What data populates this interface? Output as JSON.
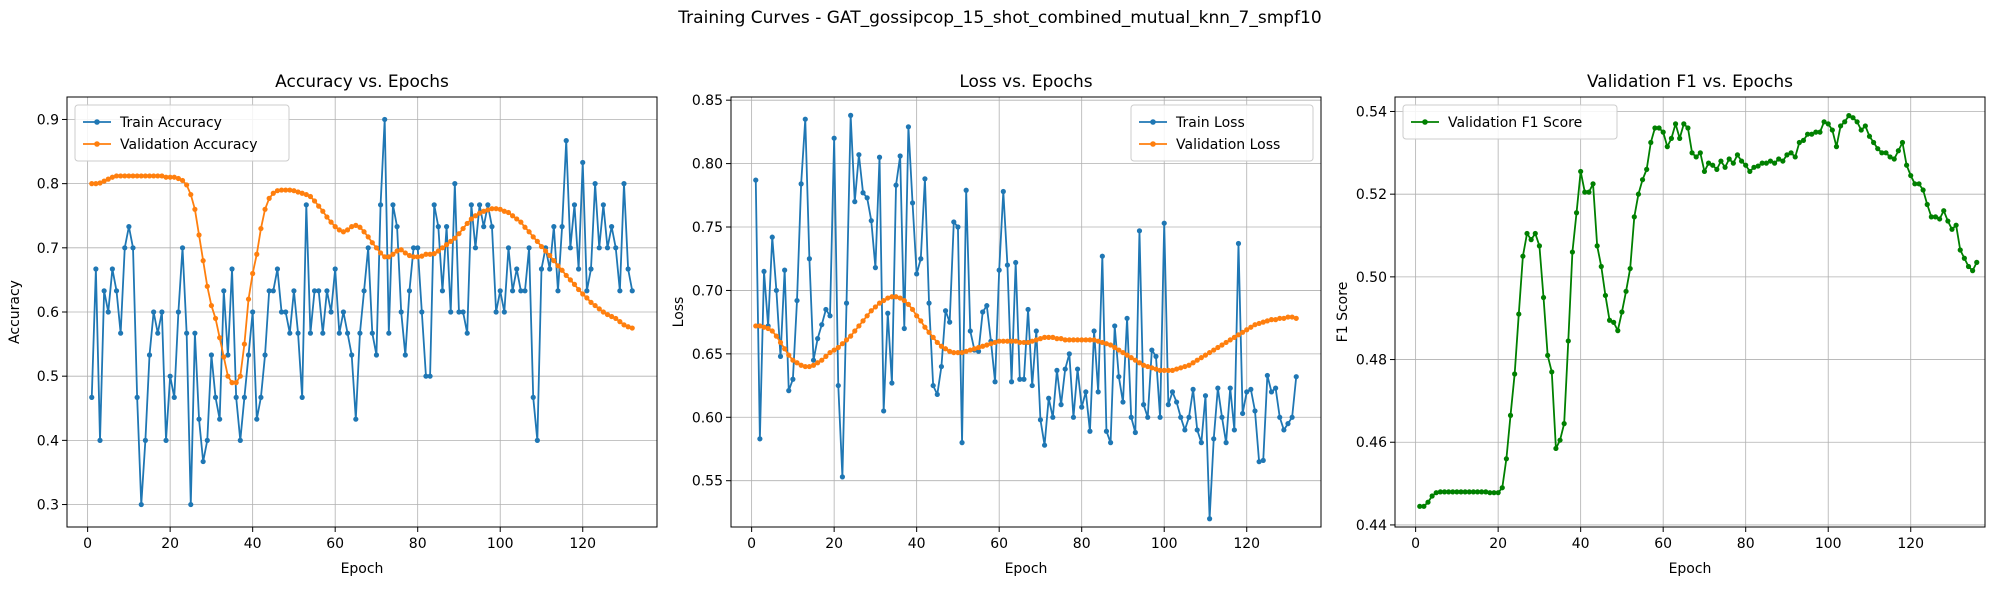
{
  "figure_title": "Training Curves - GAT_gossipcop_15_shot_combined_mutual_knn_7_smpf10",
  "chart_data": [
    {
      "type": "line",
      "title": "Accuracy vs. Epochs",
      "xlabel": "Epoch",
      "ylabel": "Accuracy",
      "xlim": [
        -5,
        138
      ],
      "ylim": [
        0.265,
        0.935
      ],
      "xticks": [
        0,
        20,
        40,
        60,
        80,
        100,
        120
      ],
      "yticks": [
        0.3,
        0.4,
        0.5,
        0.6,
        0.7,
        0.8,
        0.9
      ],
      "ytick_decimals": 1,
      "grid": true,
      "legend_position": "top-left",
      "x_start": 1,
      "series": [
        {
          "name": "Train Accuracy",
          "color": "#1f77b4",
          "values": [
            0.467,
            0.667,
            0.4,
            0.633,
            0.6,
            0.667,
            0.633,
            0.567,
            0.7,
            0.733,
            0.7,
            0.467,
            0.3,
            0.4,
            0.533,
            0.6,
            0.567,
            0.6,
            0.4,
            0.5,
            0.467,
            0.6,
            0.7,
            0.567,
            0.3,
            0.567,
            0.433,
            0.367,
            0.4,
            0.533,
            0.467,
            0.433,
            0.633,
            0.533,
            0.667,
            0.467,
            0.4,
            0.467,
            0.533,
            0.6,
            0.433,
            0.467,
            0.533,
            0.633,
            0.633,
            0.667,
            0.6,
            0.6,
            0.567,
            0.633,
            0.567,
            0.467,
            0.767,
            0.567,
            0.633,
            0.633,
            0.567,
            0.633,
            0.6,
            0.667,
            0.567,
            0.6,
            0.567,
            0.533,
            0.433,
            0.567,
            0.633,
            0.7,
            0.567,
            0.533,
            0.767,
            0.9,
            0.567,
            0.767,
            0.733,
            0.6,
            0.533,
            0.633,
            0.7,
            0.7,
            0.6,
            0.5,
            0.5,
            0.767,
            0.733,
            0.633,
            0.733,
            0.6,
            0.8,
            0.6,
            0.6,
            0.567,
            0.767,
            0.7,
            0.767,
            0.733,
            0.767,
            0.733,
            0.6,
            0.633,
            0.6,
            0.7,
            0.633,
            0.667,
            0.633,
            0.633,
            0.7,
            0.467,
            0.4,
            0.667,
            0.7,
            0.667,
            0.733,
            0.633,
            0.733,
            0.867,
            0.7,
            0.767,
            0.667,
            0.833,
            0.633,
            0.667,
            0.8,
            0.7,
            0.767,
            0.7,
            0.733,
            0.7,
            0.633,
            0.8,
            0.667,
            0.633
          ]
        },
        {
          "name": "Validation Accuracy",
          "color": "#ff7f0e",
          "values": [
            0.8,
            0.8,
            0.801,
            0.804,
            0.807,
            0.81,
            0.812,
            0.812,
            0.812,
            0.812,
            0.812,
            0.812,
            0.812,
            0.812,
            0.812,
            0.812,
            0.812,
            0.812,
            0.81,
            0.81,
            0.81,
            0.808,
            0.805,
            0.798,
            0.783,
            0.76,
            0.72,
            0.68,
            0.64,
            0.61,
            0.59,
            0.56,
            0.53,
            0.5,
            0.49,
            0.49,
            0.5,
            0.55,
            0.62,
            0.66,
            0.69,
            0.73,
            0.76,
            0.777,
            0.785,
            0.789,
            0.79,
            0.79,
            0.79,
            0.789,
            0.787,
            0.785,
            0.783,
            0.78,
            0.773,
            0.765,
            0.757,
            0.748,
            0.74,
            0.733,
            0.728,
            0.725,
            0.728,
            0.733,
            0.735,
            0.732,
            0.725,
            0.717,
            0.708,
            0.7,
            0.692,
            0.686,
            0.686,
            0.69,
            0.695,
            0.697,
            0.692,
            0.688,
            0.686,
            0.686,
            0.687,
            0.69,
            0.69,
            0.691,
            0.695,
            0.7,
            0.705,
            0.71,
            0.715,
            0.722,
            0.73,
            0.738,
            0.745,
            0.75,
            0.754,
            0.757,
            0.759,
            0.761,
            0.761,
            0.76,
            0.757,
            0.755,
            0.75,
            0.745,
            0.74,
            0.732,
            0.725,
            0.717,
            0.71,
            0.702,
            0.695,
            0.688,
            0.68,
            0.672,
            0.665,
            0.657,
            0.65,
            0.643,
            0.635,
            0.628,
            0.622,
            0.615,
            0.61,
            0.605,
            0.6,
            0.596,
            0.593,
            0.59,
            0.585,
            0.58,
            0.577,
            0.575
          ]
        }
      ]
    },
    {
      "type": "line",
      "title": "Loss vs. Epochs",
      "xlabel": "Epoch",
      "ylabel": "Loss",
      "xlim": [
        -5,
        138
      ],
      "ylim": [
        0.5135,
        0.8525
      ],
      "xticks": [
        0,
        20,
        40,
        60,
        80,
        100,
        120
      ],
      "yticks": [
        0.55,
        0.6,
        0.65,
        0.7,
        0.75,
        0.8,
        0.85
      ],
      "ytick_decimals": 2,
      "grid": true,
      "legend_position": "top-right",
      "x_start": 1,
      "series": [
        {
          "name": "Train Loss",
          "color": "#1f77b4",
          "values": [
            0.787,
            0.583,
            0.715,
            0.672,
            0.742,
            0.7,
            0.648,
            0.716,
            0.621,
            0.63,
            0.692,
            0.784,
            0.835,
            0.725,
            0.645,
            0.662,
            0.673,
            0.685,
            0.68,
            0.82,
            0.625,
            0.553,
            0.69,
            0.838,
            0.77,
            0.807,
            0.777,
            0.773,
            0.755,
            0.718,
            0.805,
            0.605,
            0.682,
            0.627,
            0.783,
            0.806,
            0.67,
            0.829,
            0.769,
            0.713,
            0.725,
            0.788,
            0.69,
            0.625,
            0.618,
            0.64,
            0.684,
            0.675,
            0.754,
            0.75,
            0.58,
            0.779,
            0.668,
            0.653,
            0.652,
            0.683,
            0.688,
            0.66,
            0.628,
            0.716,
            0.778,
            0.72,
            0.628,
            0.722,
            0.63,
            0.63,
            0.685,
            0.625,
            0.668,
            0.598,
            0.578,
            0.615,
            0.6,
            0.637,
            0.61,
            0.638,
            0.65,
            0.6,
            0.638,
            0.608,
            0.62,
            0.589,
            0.668,
            0.62,
            0.727,
            0.589,
            0.58,
            0.672,
            0.632,
            0.612,
            0.678,
            0.6,
            0.588,
            0.747,
            0.61,
            0.6,
            0.653,
            0.648,
            0.6,
            0.753,
            0.61,
            0.62,
            0.612,
            0.6,
            0.59,
            0.6,
            0.622,
            0.59,
            0.58,
            0.617,
            0.52,
            0.583,
            0.623,
            0.6,
            0.58,
            0.623,
            0.59,
            0.737,
            0.603,
            0.62,
            0.622,
            0.605,
            0.565,
            0.566,
            0.633,
            0.62,
            0.623,
            0.6,
            0.59,
            0.595,
            0.6,
            0.632
          ]
        },
        {
          "name": "Validation Loss",
          "color": "#ff7f0e",
          "values": [
            0.672,
            0.672,
            0.671,
            0.67,
            0.668,
            0.664,
            0.659,
            0.654,
            0.649,
            0.645,
            0.643,
            0.641,
            0.64,
            0.64,
            0.641,
            0.643,
            0.645,
            0.648,
            0.651,
            0.653,
            0.655,
            0.658,
            0.661,
            0.664,
            0.668,
            0.672,
            0.676,
            0.68,
            0.684,
            0.687,
            0.69,
            0.692,
            0.694,
            0.695,
            0.695,
            0.694,
            0.692,
            0.689,
            0.685,
            0.68,
            0.676,
            0.671,
            0.667,
            0.663,
            0.659,
            0.656,
            0.654,
            0.652,
            0.651,
            0.651,
            0.651,
            0.652,
            0.653,
            0.654,
            0.655,
            0.656,
            0.657,
            0.658,
            0.659,
            0.66,
            0.66,
            0.66,
            0.66,
            0.66,
            0.659,
            0.659,
            0.659,
            0.66,
            0.661,
            0.662,
            0.663,
            0.663,
            0.663,
            0.662,
            0.662,
            0.661,
            0.661,
            0.661,
            0.661,
            0.661,
            0.661,
            0.661,
            0.661,
            0.66,
            0.659,
            0.658,
            0.657,
            0.655,
            0.653,
            0.651,
            0.649,
            0.647,
            0.645,
            0.643,
            0.641,
            0.64,
            0.639,
            0.638,
            0.637,
            0.637,
            0.637,
            0.637,
            0.638,
            0.639,
            0.64,
            0.641,
            0.643,
            0.645,
            0.647,
            0.649,
            0.651,
            0.653,
            0.655,
            0.657,
            0.659,
            0.661,
            0.663,
            0.665,
            0.667,
            0.669,
            0.671,
            0.673,
            0.674,
            0.675,
            0.676,
            0.677,
            0.677,
            0.678,
            0.678,
            0.679,
            0.679,
            0.678
          ]
        }
      ]
    },
    {
      "type": "line",
      "title": "Validation F1 vs. Epochs",
      "xlabel": "Epoch",
      "ylabel": "F1 Score",
      "xlim": [
        -5,
        138
      ],
      "ylim": [
        0.4395,
        0.5435
      ],
      "xticks": [
        0,
        20,
        40,
        60,
        80,
        100,
        120
      ],
      "yticks": [
        0.44,
        0.46,
        0.48,
        0.5,
        0.52,
        0.54
      ],
      "ytick_decimals": 2,
      "grid": true,
      "legend_position": "top-left",
      "x_start": 1,
      "series": [
        {
          "name": "Validation F1 Score",
          "color": "#008000",
          "values": [
            0.4445,
            0.4445,
            0.4455,
            0.447,
            0.4478,
            0.448,
            0.448,
            0.448,
            0.448,
            0.448,
            0.448,
            0.448,
            0.448,
            0.448,
            0.448,
            0.448,
            0.448,
            0.4478,
            0.4478,
            0.4478,
            0.449,
            0.456,
            0.4665,
            0.4765,
            0.491,
            0.505,
            0.5105,
            0.509,
            0.5105,
            0.5075,
            0.495,
            0.481,
            0.477,
            0.4585,
            0.4605,
            0.4645,
            0.4845,
            0.506,
            0.5155,
            0.5255,
            0.5205,
            0.5205,
            0.5225,
            0.5075,
            0.5025,
            0.4955,
            0.4895,
            0.489,
            0.487,
            0.4915,
            0.4965,
            0.502,
            0.5145,
            0.52,
            0.5235,
            0.526,
            0.5325,
            0.536,
            0.536,
            0.535,
            0.5315,
            0.5335,
            0.537,
            0.5335,
            0.537,
            0.536,
            0.53,
            0.529,
            0.53,
            0.5255,
            0.5275,
            0.527,
            0.526,
            0.528,
            0.5265,
            0.5285,
            0.5275,
            0.5295,
            0.528,
            0.527,
            0.5255,
            0.5265,
            0.5268,
            0.5275,
            0.5275,
            0.528,
            0.5275,
            0.5285,
            0.528,
            0.5295,
            0.53,
            0.529,
            0.5325,
            0.533,
            0.5345,
            0.5345,
            0.535,
            0.535,
            0.5375,
            0.537,
            0.5355,
            0.5315,
            0.5365,
            0.5375,
            0.539,
            0.5385,
            0.5375,
            0.5355,
            0.5365,
            0.534,
            0.5325,
            0.531,
            0.53,
            0.53,
            0.529,
            0.5285,
            0.5305,
            0.5325,
            0.527,
            0.5245,
            0.5225,
            0.5225,
            0.521,
            0.5175,
            0.5145,
            0.5145,
            0.514,
            0.516,
            0.5135,
            0.5115,
            0.5125,
            0.5065,
            0.5045,
            0.5025,
            0.5015,
            0.5035
          ]
        }
      ]
    }
  ]
}
